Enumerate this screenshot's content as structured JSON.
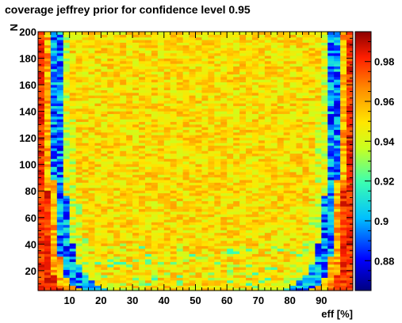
{
  "chart_data": {
    "type": "heatmap",
    "title": "coverage jeffrey prior for confidence level 0.95",
    "xlabel": "eff [%]",
    "ylabel": "N",
    "xlim": [
      0,
      100
    ],
    "ylim": [
      5,
      200
    ],
    "x_ticks": [
      10,
      20,
      30,
      40,
      50,
      60,
      70,
      80,
      90
    ],
    "y_ticks": [
      20,
      40,
      60,
      80,
      100,
      120,
      140,
      160,
      180,
      200
    ],
    "colorbar": {
      "range": [
        0.865,
        0.995
      ],
      "ticks": [
        0.88,
        0.9,
        0.92,
        0.94,
        0.96,
        0.98
      ]
    },
    "value_model": "coverage fluctuates around 0.95 in the interior (about 0.94 to 0.96), with low coverage (about 0.87 to 0.91) along curved bands near eff = 0% and eff = 100% that widen as N decreases, and high coverage (about 0.97 to 0.99) at the extreme edges"
  }
}
